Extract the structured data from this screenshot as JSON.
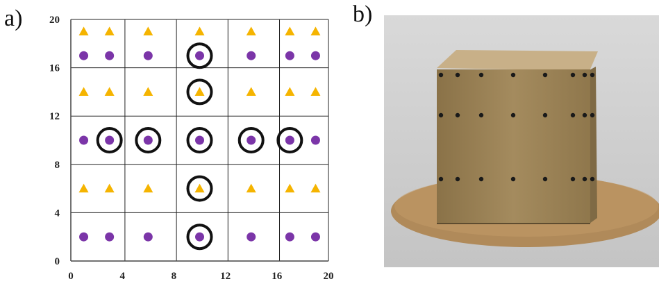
{
  "panels": {
    "a_label": "a)",
    "b_label": "b)"
  },
  "chart_data": {
    "type": "scatter",
    "title": "",
    "xlabel": "",
    "ylabel": "",
    "xlim": [
      0,
      20
    ],
    "ylim": [
      0,
      20
    ],
    "xticks": [
      0,
      4,
      8,
      12,
      16,
      20
    ],
    "yticks": [
      0,
      4,
      8,
      12,
      16,
      20
    ],
    "grid_x": [
      0,
      4.2,
      8.2,
      12.2,
      16.2,
      20
    ],
    "grid_y": [
      0,
      4,
      8,
      12,
      16,
      20
    ],
    "series": [
      {
        "marker": "triangle",
        "color": "#F5B400",
        "points": [
          [
            1,
            19
          ],
          [
            3,
            19
          ],
          [
            6,
            19
          ],
          [
            10,
            19
          ],
          [
            14,
            19
          ],
          [
            17,
            19
          ],
          [
            19,
            19
          ],
          [
            1,
            14
          ],
          [
            3,
            14
          ],
          [
            6,
            14
          ],
          [
            10,
            14
          ],
          [
            14,
            14
          ],
          [
            17,
            14
          ],
          [
            19,
            14
          ],
          [
            1,
            6
          ],
          [
            3,
            6
          ],
          [
            6,
            6
          ],
          [
            10,
            6
          ],
          [
            14,
            6
          ],
          [
            17,
            6
          ],
          [
            19,
            6
          ]
        ]
      },
      {
        "marker": "circle",
        "color": "#7B35A8",
        "points": [
          [
            1,
            17
          ],
          [
            3,
            17
          ],
          [
            6,
            17
          ],
          [
            10,
            17
          ],
          [
            14,
            17
          ],
          [
            17,
            17
          ],
          [
            19,
            17
          ],
          [
            1,
            10
          ],
          [
            3,
            10
          ],
          [
            6,
            10
          ],
          [
            10,
            10
          ],
          [
            14,
            10
          ],
          [
            17,
            10
          ],
          [
            19,
            10
          ],
          [
            1,
            2
          ],
          [
            3,
            2
          ],
          [
            6,
            2
          ],
          [
            10,
            2
          ],
          [
            14,
            2
          ],
          [
            17,
            2
          ],
          [
            19,
            2
          ]
        ]
      }
    ],
    "highlighted_points": [
      [
        10,
        17
      ],
      [
        10,
        14
      ],
      [
        3,
        10
      ],
      [
        6,
        10
      ],
      [
        10,
        10
      ],
      [
        14,
        10
      ],
      [
        17,
        10
      ],
      [
        10,
        6
      ],
      [
        10,
        2
      ]
    ]
  },
  "photo": {
    "background_top": "#d9d9d9",
    "background_bottom": "#c4c4c4",
    "cube_front": "#9c8558",
    "cube_top": "#c8b088",
    "cube_side": "#7f6a45",
    "base_plate": "#b08a5a",
    "hole_rows": [
      {
        "y_level": "top",
        "x_count": 8
      },
      {
        "y_level": "middle",
        "x_count": 8
      },
      {
        "y_level": "bottom",
        "x_count": 8
      }
    ]
  }
}
